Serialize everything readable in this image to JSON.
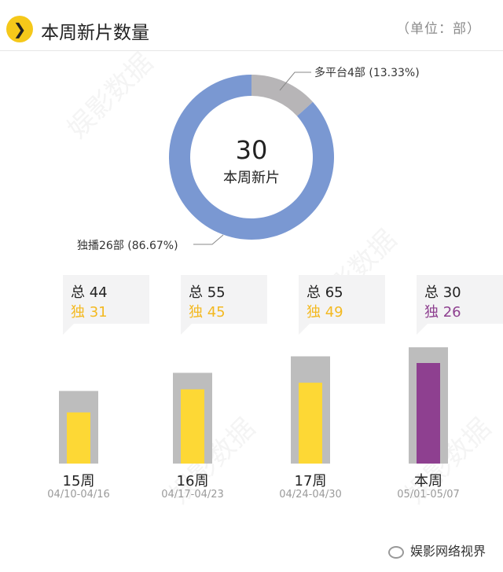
{
  "header": {
    "title": "本周新片数量",
    "unit": "（单位：部）"
  },
  "watermark": "娱影数据",
  "footer": {
    "brand": "娱影网络视界"
  },
  "chart_data": [
    {
      "type": "pie",
      "center_total": "30",
      "center_label": "本周新片",
      "slices": [
        {
          "label": "多平台4部 (13.33%)",
          "value": 4,
          "percent": 13.33,
          "color": "#b7b5b7"
        },
        {
          "label": "独播26部 (86.67%)",
          "value": 26,
          "percent": 86.67,
          "color": "#7a98d2"
        }
      ]
    },
    {
      "type": "bar",
      "categories": [
        "15周",
        "16周",
        "17周",
        "本周"
      ],
      "date_ranges": [
        "04/10-04/16",
        "04/17-04/23",
        "04/24-04/30",
        "05/01-05/07"
      ],
      "series": [
        {
          "name": "总",
          "values": [
            44,
            55,
            65,
            30
          ]
        },
        {
          "name": "独",
          "values": [
            31,
            45,
            49,
            26
          ]
        }
      ],
      "total_labels": [
        "总 44",
        "总 55",
        "总 65",
        "总 30"
      ],
      "exclusive_labels": [
        "独 31",
        "独 45",
        "独 49",
        "独 26"
      ],
      "colors": {
        "outer": "#bdbdbd",
        "inner": "#fdd835",
        "inner_current": "#8e4090",
        "label_exclusive": "#f3b921",
        "label_exclusive_current": "#8e4090"
      }
    }
  ]
}
